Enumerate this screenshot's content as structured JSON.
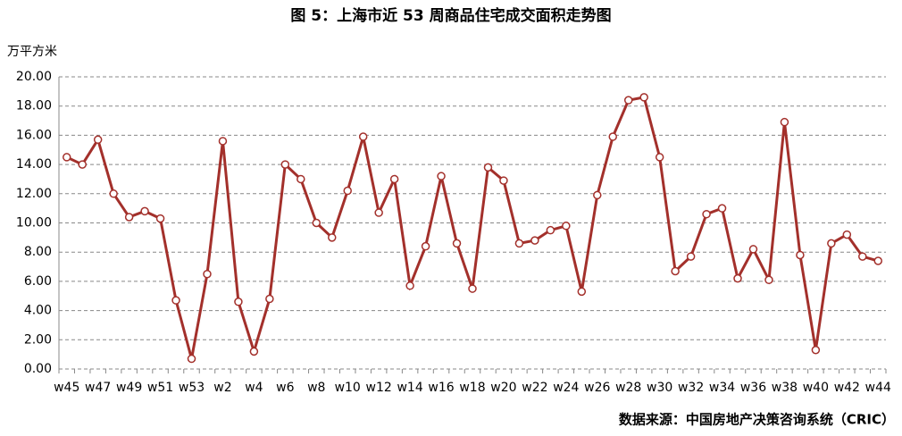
{
  "chart_data": {
    "type": "line",
    "title": "图 5：上海市近 53 周商品住宅成交面积走势图",
    "y_label": "万平方米",
    "source": "数据来源：中国房地产决策咨询系统（CRIC）",
    "categories": [
      "w45",
      null,
      "w47",
      null,
      "w49",
      null,
      "w51",
      null,
      "w53",
      null,
      "w2",
      null,
      "w4",
      null,
      "w6",
      null,
      "w8",
      null,
      "w10",
      null,
      "w12",
      null,
      "w14",
      null,
      "w16",
      null,
      "w18",
      null,
      "w20",
      null,
      "w22",
      null,
      "w24",
      null,
      "w26",
      null,
      "w28",
      null,
      "w30",
      null,
      "w32",
      null,
      "w34",
      null,
      "w36",
      null,
      "w38",
      null,
      "w40",
      null,
      "w42",
      null,
      "w44"
    ],
    "series": [
      {
        "name": "成交面积",
        "color": "#a3302b",
        "values": [
          14.5,
          14.0,
          15.7,
          12.0,
          10.4,
          10.8,
          10.3,
          4.7,
          0.7,
          6.5,
          15.6,
          4.6,
          1.2,
          4.8,
          14.0,
          13.0,
          10.0,
          9.0,
          12.2,
          15.9,
          10.7,
          13.0,
          5.7,
          8.4,
          13.2,
          8.6,
          5.5,
          13.8,
          12.9,
          8.6,
          8.8,
          9.5,
          9.8,
          5.3,
          11.9,
          15.9,
          18.4,
          18.6,
          14.5,
          6.7,
          7.7,
          10.6,
          11.0,
          6.2,
          8.2,
          6.1,
          16.9,
          7.8,
          1.3,
          8.6,
          9.2,
          7.7,
          7.4
        ]
      }
    ],
    "ylim": [
      0,
      20
    ],
    "yticks": [
      {
        "value": 0,
        "label": "0.00"
      },
      {
        "value": 2,
        "label": "2.00"
      },
      {
        "value": 4,
        "label": "4.00"
      },
      {
        "value": 6,
        "label": "6.00"
      },
      {
        "value": 8,
        "label": "8.00"
      },
      {
        "value": 10,
        "label": "10.00"
      },
      {
        "value": 12,
        "label": "12.00"
      },
      {
        "value": 14,
        "label": "14.00"
      },
      {
        "value": 16,
        "label": "16.00"
      },
      {
        "value": 18,
        "label": "18.00"
      },
      {
        "value": 20,
        "label": "20.00"
      }
    ],
    "grid": true
  }
}
